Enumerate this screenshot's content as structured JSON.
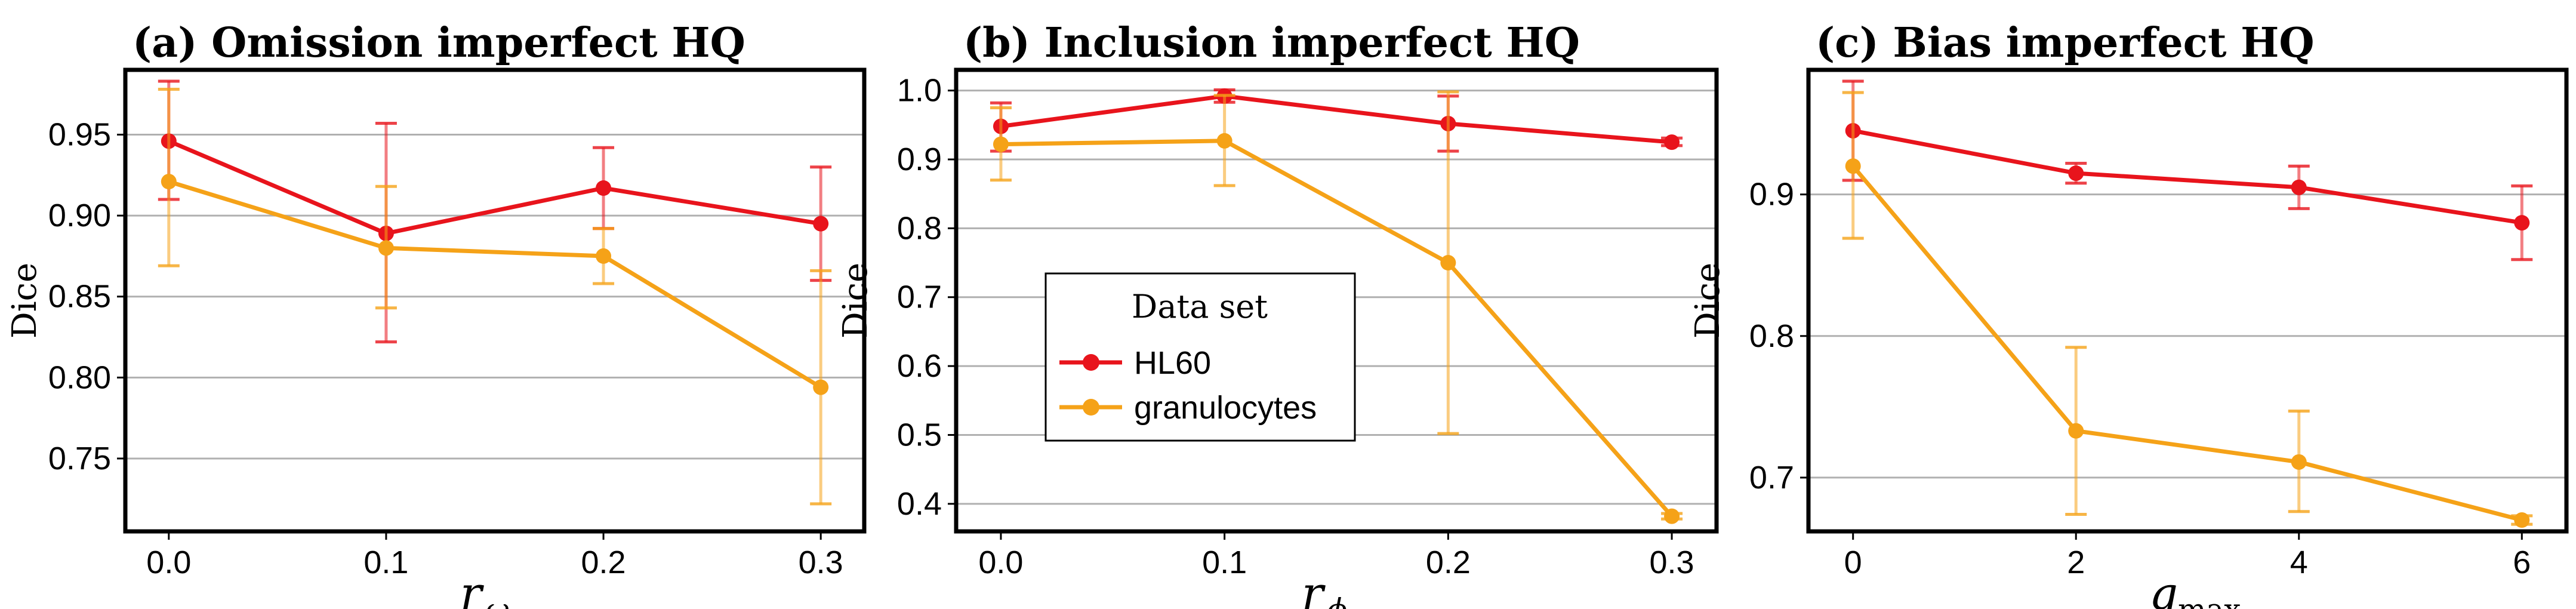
{
  "chart_data": [
    {
      "type": "line",
      "title": "(a) Omission imperfect HQ",
      "ylabel": "Dice",
      "xlabel_main": "r",
      "xlabel_sub": "ω",
      "x_ticks": [
        "0.0",
        "0.1",
        "0.2",
        "0.3"
      ],
      "x": [
        0.0,
        0.1,
        0.2,
        0.3
      ],
      "xlim": [
        -0.02,
        0.32
      ],
      "ylim": [
        0.705,
        0.99
      ],
      "y_ticks": [
        0.75,
        0.8,
        0.85,
        0.9,
        0.95
      ],
      "y_tick_labels": [
        "0.75",
        "0.80",
        "0.85",
        "0.90",
        "0.95"
      ],
      "series": [
        {
          "name": "HL60",
          "color": "#e8141c",
          "values": [
            0.946,
            0.889,
            0.917,
            0.895
          ],
          "err_low": [
            0.91,
            0.822,
            0.892,
            0.86
          ],
          "err_high": [
            0.983,
            0.957,
            0.942,
            0.93
          ]
        },
        {
          "name": "granulocytes",
          "color": "#f5a218",
          "values": [
            0.921,
            0.88,
            0.875,
            0.794
          ],
          "err_low": [
            0.869,
            0.843,
            0.858,
            0.722
          ],
          "err_high": [
            0.978,
            0.918,
            0.892,
            0.866
          ]
        }
      ]
    },
    {
      "type": "line",
      "title": "(b) Inclusion imperfect HQ",
      "ylabel": "Dice",
      "xlabel_main": "r",
      "xlabel_sub": "ϕ",
      "x_ticks": [
        "0.0",
        "0.1",
        "0.2",
        "0.3"
      ],
      "x": [
        0.0,
        0.1,
        0.2,
        0.3
      ],
      "xlim": [
        -0.02,
        0.32
      ],
      "ylim": [
        0.36,
        1.03
      ],
      "y_ticks": [
        0.4,
        0.5,
        0.6,
        0.7,
        0.8,
        0.9,
        1.0
      ],
      "y_tick_labels": [
        "0.4",
        "0.5",
        "0.6",
        "0.7",
        "0.8",
        "0.9",
        "1.0"
      ],
      "series": [
        {
          "name": "HL60",
          "color": "#e8141c",
          "values": [
            0.948,
            0.992,
            0.952,
            0.925
          ],
          "err_low": [
            0.912,
            0.983,
            0.912,
            0.92
          ],
          "err_high": [
            0.982,
            1.001,
            0.992,
            0.931
          ]
        },
        {
          "name": "granulocytes",
          "color": "#f5a218",
          "values": [
            0.922,
            0.927,
            0.75,
            0.382
          ],
          "err_low": [
            0.87,
            0.862,
            0.502,
            0.378
          ],
          "err_high": [
            0.975,
            0.993,
            0.998,
            0.386
          ]
        }
      ]
    },
    {
      "type": "line",
      "title": "(c) Bias imperfect HQ",
      "ylabel": "Dice",
      "xlabel_main": "q",
      "xlabel_sub": "max",
      "x_ticks": [
        "0",
        "2",
        "4",
        "6"
      ],
      "x": [
        0,
        2,
        4,
        6
      ],
      "xlim": [
        -0.4,
        6.4
      ],
      "ylim": [
        0.662,
        0.988
      ],
      "y_ticks": [
        0.7,
        0.8,
        0.9
      ],
      "y_tick_labels": [
        "0.7",
        "0.8",
        "0.9"
      ],
      "series": [
        {
          "name": "HL60",
          "color": "#e8141c",
          "values": [
            0.945,
            0.915,
            0.905,
            0.88
          ],
          "err_low": [
            0.91,
            0.908,
            0.89,
            0.854
          ],
          "err_high": [
            0.98,
            0.922,
            0.92,
            0.906
          ]
        },
        {
          "name": "granulocytes",
          "color": "#f5a218",
          "values": [
            0.92,
            0.733,
            0.711,
            0.67
          ],
          "err_low": [
            0.869,
            0.674,
            0.676,
            0.667
          ],
          "err_high": [
            0.972,
            0.792,
            0.747,
            0.673
          ]
        }
      ]
    }
  ],
  "legend": {
    "title": "Data set",
    "entries": [
      {
        "label": "HL60",
        "color": "#e8141c"
      },
      {
        "label": "granulocytes",
        "color": "#f5a218"
      }
    ]
  }
}
